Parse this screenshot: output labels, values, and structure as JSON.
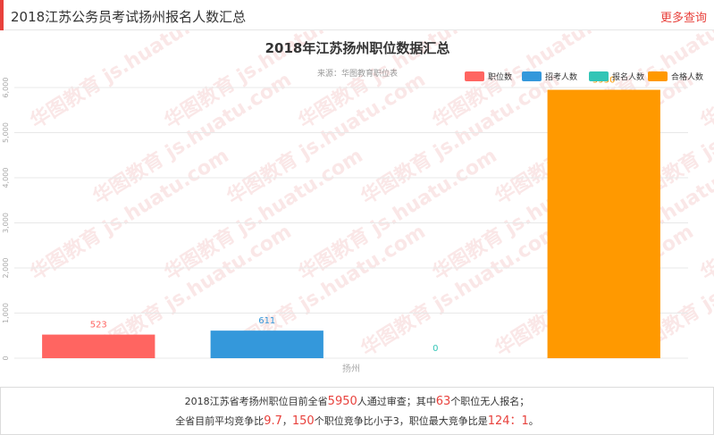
{
  "header": {
    "title": "2018江苏公务员考试扬州报名人数汇总",
    "more_label": "更多查询"
  },
  "chart_data": {
    "type": "bar",
    "title": "2018年江苏扬州职位数据汇总",
    "subtitle": "来源：华图教育职位表",
    "categories": [
      "扬州"
    ],
    "series": [
      {
        "name": "职位数",
        "values": [
          523
        ],
        "color": "#ff6561"
      },
      {
        "name": "招考人数",
        "values": [
          611
        ],
        "color": "#3498db"
      },
      {
        "name": "报名人数",
        "values": [
          0
        ],
        "color": "#33c5b6"
      },
      {
        "name": "合格人数",
        "values": [
          5950
        ],
        "color": "#ff9900"
      }
    ],
    "data_labels": [
      "523",
      "611",
      "0",
      "5950"
    ],
    "ylim": [
      0,
      6000
    ],
    "yticks": [
      0,
      1000,
      2000,
      3000,
      4000,
      5000,
      6000
    ],
    "ytick_labels": [
      "0",
      "1,000",
      "2,000",
      "3,000",
      "4,000",
      "5,000",
      "6,000"
    ],
    "grid": true,
    "legend_position": "top-right",
    "watermark": "华图教育 js.huatu.com"
  },
  "summary": {
    "l1_a": "2018江苏省考扬州职位目前全省",
    "l1_v1": "5950",
    "l1_b": "人通过审查；其中",
    "l1_v2": "63",
    "l1_c": "个职位无人报名；",
    "l2_a": "全省目前平均竞争比",
    "l2_v1": "9.7",
    "l2_b": "，",
    "l2_v2": "150",
    "l2_c": "个职位竞争比小于3，职位最大竞争比是",
    "l2_v3": "124：1",
    "l2_d": "。"
  }
}
